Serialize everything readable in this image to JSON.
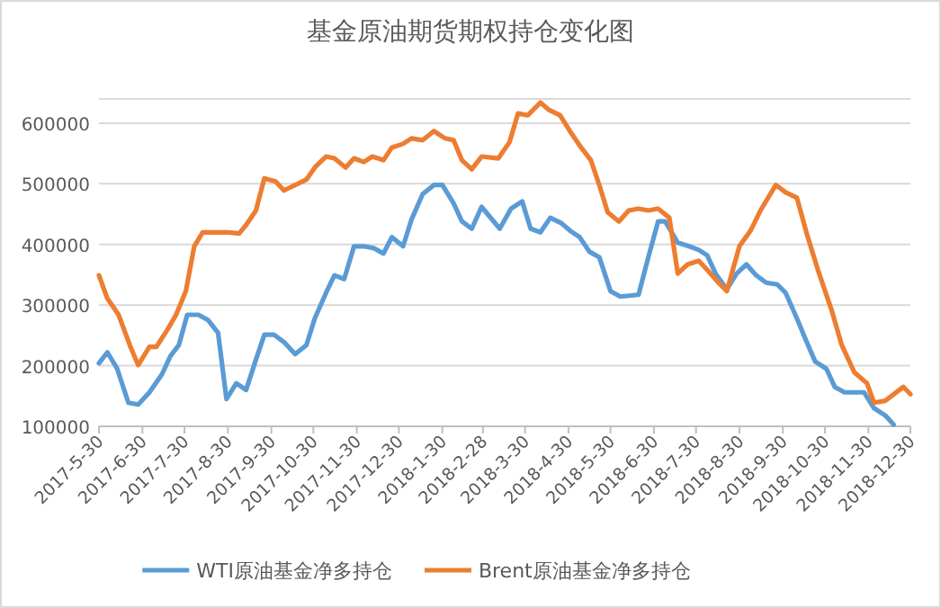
{
  "chart_data": {
    "type": "line",
    "title": "基金原油期货期权持仓变化图",
    "legend": "bottom",
    "grid": "y",
    "line_style": "solid",
    "marker": "none",
    "xlim": [
      "2017-05-30",
      "2018-12-30"
    ],
    "xticks": [
      {
        "value": "2017-05-30",
        "label": "2017-5-30"
      },
      {
        "value": "2017-06-30",
        "label": "2017-6-30"
      },
      {
        "value": "2017-07-30",
        "label": "2017-7-30"
      },
      {
        "value": "2017-08-30",
        "label": "2017-8-30"
      },
      {
        "value": "2017-09-30",
        "label": "2017-9-30"
      },
      {
        "value": "2017-10-30",
        "label": "2017-10-30"
      },
      {
        "value": "2017-11-30",
        "label": "2017-11-30"
      },
      {
        "value": "2017-12-30",
        "label": "2017-12-30"
      },
      {
        "value": "2018-01-30",
        "label": "2018-1-30"
      },
      {
        "value": "2018-02-28",
        "label": "2018-2-28"
      },
      {
        "value": "2018-03-30",
        "label": "2018-3-30"
      },
      {
        "value": "2018-04-30",
        "label": "2018-4-30"
      },
      {
        "value": "2018-05-30",
        "label": "2018-5-30"
      },
      {
        "value": "2018-06-30",
        "label": "2018-6-30"
      },
      {
        "value": "2018-07-30",
        "label": "2018-7-30"
      },
      {
        "value": "2018-08-30",
        "label": "2018-8-30"
      },
      {
        "value": "2018-09-30",
        "label": "2018-9-30"
      },
      {
        "value": "2018-10-30",
        "label": "2018-10-30"
      },
      {
        "value": "2018-11-30",
        "label": "2018-11-30"
      },
      {
        "value": "2018-12-30",
        "label": "2018-12-30"
      }
    ],
    "ylim": [
      100000,
      640000
    ],
    "yticks": [
      100000,
      200000,
      300000,
      400000,
      500000,
      600000
    ],
    "series": [
      {
        "name": "WTI原油基金净多持仓",
        "color": "#5b9bd5",
        "x": [
          "2017-05-30",
          "2017-06-05",
          "2017-06-12",
          "2017-06-20",
          "2017-06-27",
          "2017-07-05",
          "2017-07-14",
          "2017-07-20",
          "2017-07-26",
          "2017-08-01",
          "2017-08-09",
          "2017-08-16",
          "2017-08-23",
          "2017-08-29",
          "2017-09-05",
          "2017-09-12",
          "2017-09-19",
          "2017-09-25",
          "2017-10-02",
          "2017-10-09",
          "2017-10-17",
          "2017-10-25",
          "2017-10-31",
          "2017-11-08",
          "2017-11-14",
          "2017-11-21",
          "2017-11-28",
          "2017-12-05",
          "2017-12-12",
          "2017-12-19",
          "2017-12-25",
          "2018-01-02",
          "2018-01-08",
          "2018-01-16",
          "2018-01-24",
          "2018-01-30",
          "2018-02-07",
          "2018-02-13",
          "2018-02-20",
          "2018-02-27",
          "2018-03-12",
          "2018-03-20",
          "2018-03-28",
          "2018-04-03",
          "2018-04-10",
          "2018-04-17",
          "2018-04-25",
          "2018-05-01",
          "2018-05-08",
          "2018-05-15",
          "2018-05-22",
          "2018-05-30",
          "2018-06-06",
          "2018-06-19",
          "2018-06-26",
          "2018-07-03",
          "2018-07-08",
          "2018-07-17",
          "2018-07-25",
          "2018-08-01",
          "2018-08-07",
          "2018-08-13",
          "2018-08-21",
          "2018-08-28",
          "2018-09-04",
          "2018-09-11",
          "2018-09-18",
          "2018-09-26",
          "2018-10-02",
          "2018-10-10",
          "2018-10-17",
          "2018-10-23",
          "2018-10-31",
          "2018-11-06",
          "2018-11-13",
          "2018-11-27",
          "2018-12-04",
          "2018-12-12",
          "2018-12-18"
        ],
        "values": [
          204000,
          222000,
          195000,
          139000,
          136000,
          156000,
          186000,
          216000,
          234000,
          284000,
          284000,
          275000,
          254000,
          145000,
          171000,
          160000,
          210000,
          251000,
          251000,
          239000,
          219000,
          234000,
          278000,
          320000,
          349000,
          343000,
          397000,
          397000,
          394000,
          385000,
          412000,
          397000,
          441000,
          483000,
          498000,
          498000,
          468000,
          438000,
          426000,
          462000,
          426000,
          459000,
          471000,
          426000,
          420000,
          444000,
          435000,
          423000,
          412000,
          388000,
          379000,
          323000,
          314000,
          317000,
          379000,
          438000,
          438000,
          403000,
          397000,
          391000,
          382000,
          352000,
          326000,
          352000,
          367000,
          349000,
          337000,
          334000,
          320000,
          278000,
          239000,
          207000,
          195000,
          165000,
          156000,
          156000,
          130000,
          118000,
          103000
        ]
      },
      {
        "name": "Brent原油基金净多持仓",
        "color": "#ed7d31",
        "x": [
          "2017-05-30",
          "2017-06-05",
          "2017-06-13",
          "2017-06-21",
          "2017-06-27",
          "2017-07-05",
          "2017-07-10",
          "2017-07-18",
          "2017-07-24",
          "2017-07-31",
          "2017-08-06",
          "2017-08-12",
          "2017-08-21",
          "2017-08-30",
          "2017-09-07",
          "2017-09-12",
          "2017-09-19",
          "2017-09-25",
          "2017-10-03",
          "2017-10-09",
          "2017-10-17",
          "2017-10-25",
          "2017-10-31",
          "2017-11-08",
          "2017-11-14",
          "2017-11-22",
          "2017-11-28",
          "2017-12-05",
          "2017-12-11",
          "2017-12-19",
          "2017-12-25",
          "2018-01-02",
          "2018-01-08",
          "2018-01-16",
          "2018-01-24",
          "2018-02-01",
          "2018-02-07",
          "2018-02-13",
          "2018-02-20",
          "2018-02-27",
          "2018-03-11",
          "2018-03-19",
          "2018-03-25",
          "2018-04-01",
          "2018-04-10",
          "2018-04-16",
          "2018-04-24",
          "2018-05-01",
          "2018-05-09",
          "2018-05-16",
          "2018-05-22",
          "2018-05-28",
          "2018-06-05",
          "2018-06-12",
          "2018-06-19",
          "2018-06-26",
          "2018-07-03",
          "2018-07-11",
          "2018-07-17",
          "2018-07-24",
          "2018-08-01",
          "2018-08-07",
          "2018-08-15",
          "2018-08-21",
          "2018-08-30",
          "2018-09-07",
          "2018-09-14",
          "2018-09-25",
          "2018-10-02",
          "2018-10-10",
          "2018-10-17",
          "2018-10-25",
          "2018-11-04",
          "2018-11-11",
          "2018-11-20",
          "2018-11-29",
          "2018-12-04",
          "2018-12-12",
          "2018-12-25",
          "2018-12-30"
        ],
        "values": [
          349000,
          311000,
          284000,
          234000,
          201000,
          231000,
          231000,
          260000,
          284000,
          323000,
          397000,
          420000,
          420000,
          420000,
          418000,
          432000,
          456000,
          509000,
          504000,
          489000,
          498000,
          507000,
          527000,
          545000,
          542000,
          527000,
          542000,
          536000,
          545000,
          539000,
          560000,
          566000,
          575000,
          572000,
          587000,
          575000,
          572000,
          539000,
          524000,
          545000,
          542000,
          569000,
          616000,
          613000,
          634000,
          622000,
          613000,
          587000,
          560000,
          539000,
          498000,
          453000,
          438000,
          456000,
          459000,
          456000,
          459000,
          444000,
          352000,
          367000,
          373000,
          358000,
          337000,
          323000,
          397000,
          423000,
          456000,
          498000,
          486000,
          477000,
          418000,
          358000,
          290000,
          234000,
          189000,
          171000,
          139000,
          142000,
          165000,
          153000
        ]
      }
    ]
  }
}
